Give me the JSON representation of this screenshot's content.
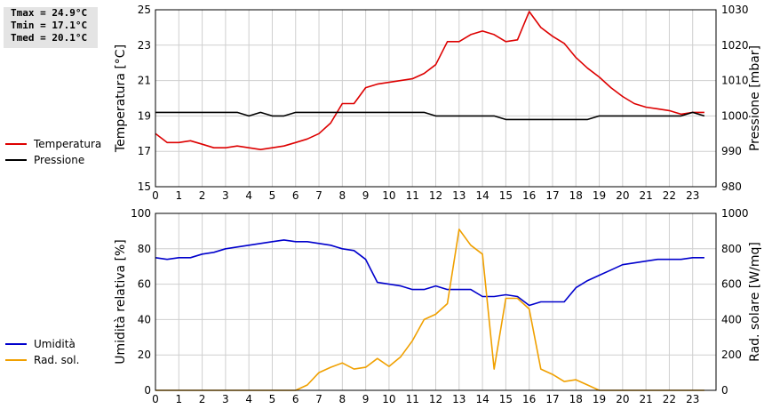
{
  "stats": {
    "tmax": "Tmax = 24.9°C",
    "tmin": "Tmin = 17.1°C",
    "tmed": "Tmed = 20.1°C"
  },
  "chart_data": [
    {
      "type": "line",
      "x_ticks": [
        "0",
        "1",
        "2",
        "3",
        "4",
        "5",
        "6",
        "7",
        "8",
        "9",
        "10",
        "11",
        "12",
        "13",
        "14",
        "15",
        "16",
        "17",
        "18",
        "19",
        "20",
        "21",
        "22",
        "23"
      ],
      "xlim": [
        0,
        24
      ],
      "ylabel_left": "Temperatura [°C]",
      "ylabel_right": "Pressione [mbar]",
      "ylim_left": [
        15,
        25
      ],
      "yticks_left": [
        "15",
        "17",
        "19",
        "21",
        "23",
        "25"
      ],
      "ylim_right": [
        980,
        1030
      ],
      "yticks_right": [
        "980",
        "990",
        "1000",
        "1010",
        "1020",
        "1030"
      ],
      "grid": true,
      "legend_position": "left",
      "series": [
        {
          "name": "Temperatura",
          "axis": "left",
          "color": "#dd0000",
          "x": [
            0,
            0.5,
            1,
            1.5,
            2,
            2.5,
            3,
            3.5,
            4,
            4.5,
            5,
            5.5,
            6,
            6.5,
            7,
            7.5,
            8,
            8.5,
            9,
            9.5,
            10,
            10.5,
            11,
            11.5,
            12,
            12.5,
            13,
            13.5,
            14,
            14.5,
            15,
            15.5,
            16,
            16.5,
            17,
            17.5,
            18,
            18.5,
            19,
            19.5,
            20,
            20.5,
            21,
            21.5,
            22,
            22.5,
            23,
            23.5
          ],
          "y": [
            18.0,
            17.5,
            17.5,
            17.6,
            17.4,
            17.2,
            17.2,
            17.3,
            17.2,
            17.1,
            17.2,
            17.3,
            17.5,
            17.7,
            18.0,
            18.6,
            19.7,
            19.7,
            20.6,
            20.8,
            20.9,
            21.0,
            21.1,
            21.4,
            21.9,
            23.2,
            23.2,
            23.6,
            23.8,
            23.6,
            23.2,
            23.3,
            24.9,
            24.0,
            23.5,
            23.1,
            22.3,
            21.7,
            21.2,
            20.6,
            20.1,
            19.7,
            19.5,
            19.4,
            19.3,
            19.1,
            19.2,
            19.2
          ]
        },
        {
          "name": "Pressione",
          "axis": "right",
          "color": "#000000",
          "x": [
            0,
            0.5,
            1,
            1.5,
            2,
            2.5,
            3,
            3.5,
            4,
            4.5,
            5,
            5.5,
            6,
            6.5,
            7,
            7.5,
            8,
            8.5,
            9,
            9.5,
            10,
            10.5,
            11,
            11.5,
            12,
            12.5,
            13,
            13.5,
            14,
            14.5,
            15,
            15.5,
            16,
            16.5,
            17,
            17.5,
            18,
            18.5,
            19,
            19.5,
            20,
            20.5,
            21,
            21.5,
            22,
            22.5,
            23,
            23.5
          ],
          "y": [
            1001,
            1001,
            1001,
            1001,
            1001,
            1001,
            1001,
            1001,
            1000,
            1001,
            1000,
            1000,
            1001,
            1001,
            1001,
            1001,
            1001,
            1001,
            1001,
            1001,
            1001,
            1001,
            1001,
            1001,
            1000,
            1000,
            1000,
            1000,
            1000,
            1000,
            999,
            999,
            999,
            999,
            999,
            999,
            999,
            999,
            1000,
            1000,
            1000,
            1000,
            1000,
            1000,
            1000,
            1000,
            1001,
            1000
          ]
        }
      ]
    },
    {
      "type": "line",
      "x_ticks": [
        "0",
        "1",
        "2",
        "3",
        "4",
        "5",
        "6",
        "7",
        "8",
        "9",
        "10",
        "11",
        "12",
        "13",
        "14",
        "15",
        "16",
        "17",
        "18",
        "19",
        "20",
        "21",
        "22",
        "23"
      ],
      "xlim": [
        0,
        24
      ],
      "ylabel_left": "Umidità relativa [%]",
      "ylabel_right": "Rad. solare [W/mq]",
      "ylim_left": [
        0,
        100
      ],
      "yticks_left": [
        "0",
        "20",
        "40",
        "60",
        "80",
        "100"
      ],
      "ylim_right": [
        0,
        1000
      ],
      "yticks_right": [
        "0",
        "200",
        "400",
        "600",
        "800",
        "1000"
      ],
      "grid": true,
      "legend_position": "left",
      "series": [
        {
          "name": "Umidità",
          "axis": "left",
          "color": "#0000cc",
          "x": [
            0,
            0.5,
            1,
            1.5,
            2,
            2.5,
            3,
            3.5,
            4,
            4.5,
            5,
            5.5,
            6,
            6.5,
            7,
            7.5,
            8,
            8.5,
            9,
            9.5,
            10,
            10.5,
            11,
            11.5,
            12,
            12.5,
            13,
            13.5,
            14,
            14.5,
            15,
            15.5,
            16,
            16.5,
            17,
            17.5,
            18,
            18.5,
            19,
            19.5,
            20,
            20.5,
            21,
            21.5,
            22,
            22.5,
            23,
            23.5
          ],
          "y": [
            75,
            74,
            75,
            75,
            77,
            78,
            80,
            81,
            82,
            83,
            84,
            85,
            84,
            84,
            83,
            82,
            80,
            79,
            74,
            61,
            60,
            59,
            57,
            57,
            59,
            57,
            57,
            57,
            53,
            53,
            54,
            53,
            48,
            50,
            50,
            50,
            58,
            62,
            65,
            68,
            71,
            72,
            73,
            74,
            74,
            74,
            75,
            75
          ]
        },
        {
          "name": "Rad. sol.",
          "axis": "right",
          "color": "#f0a000",
          "x": [
            0,
            0.5,
            1,
            1.5,
            2,
            2.5,
            3,
            3.5,
            4,
            4.5,
            5,
            5.5,
            6,
            6.5,
            7,
            7.5,
            8,
            8.5,
            9,
            9.5,
            10,
            10.5,
            11,
            11.5,
            12,
            12.5,
            13,
            13.5,
            14,
            14.5,
            15,
            15.5,
            16,
            16.5,
            17,
            17.5,
            18,
            18.5,
            19,
            19.5,
            20,
            20.5,
            21,
            21.5,
            22,
            22.5,
            23,
            23.5
          ],
          "y": [
            0,
            0,
            0,
            0,
            0,
            0,
            0,
            0,
            0,
            0,
            0,
            0,
            0,
            30,
            100,
            130,
            155,
            120,
            130,
            180,
            135,
            190,
            280,
            400,
            430,
            490,
            910,
            820,
            770,
            120,
            520,
            520,
            460,
            120,
            90,
            50,
            60,
            30,
            0,
            0,
            0,
            0,
            0,
            0,
            0,
            0,
            0,
            0
          ]
        }
      ]
    }
  ]
}
